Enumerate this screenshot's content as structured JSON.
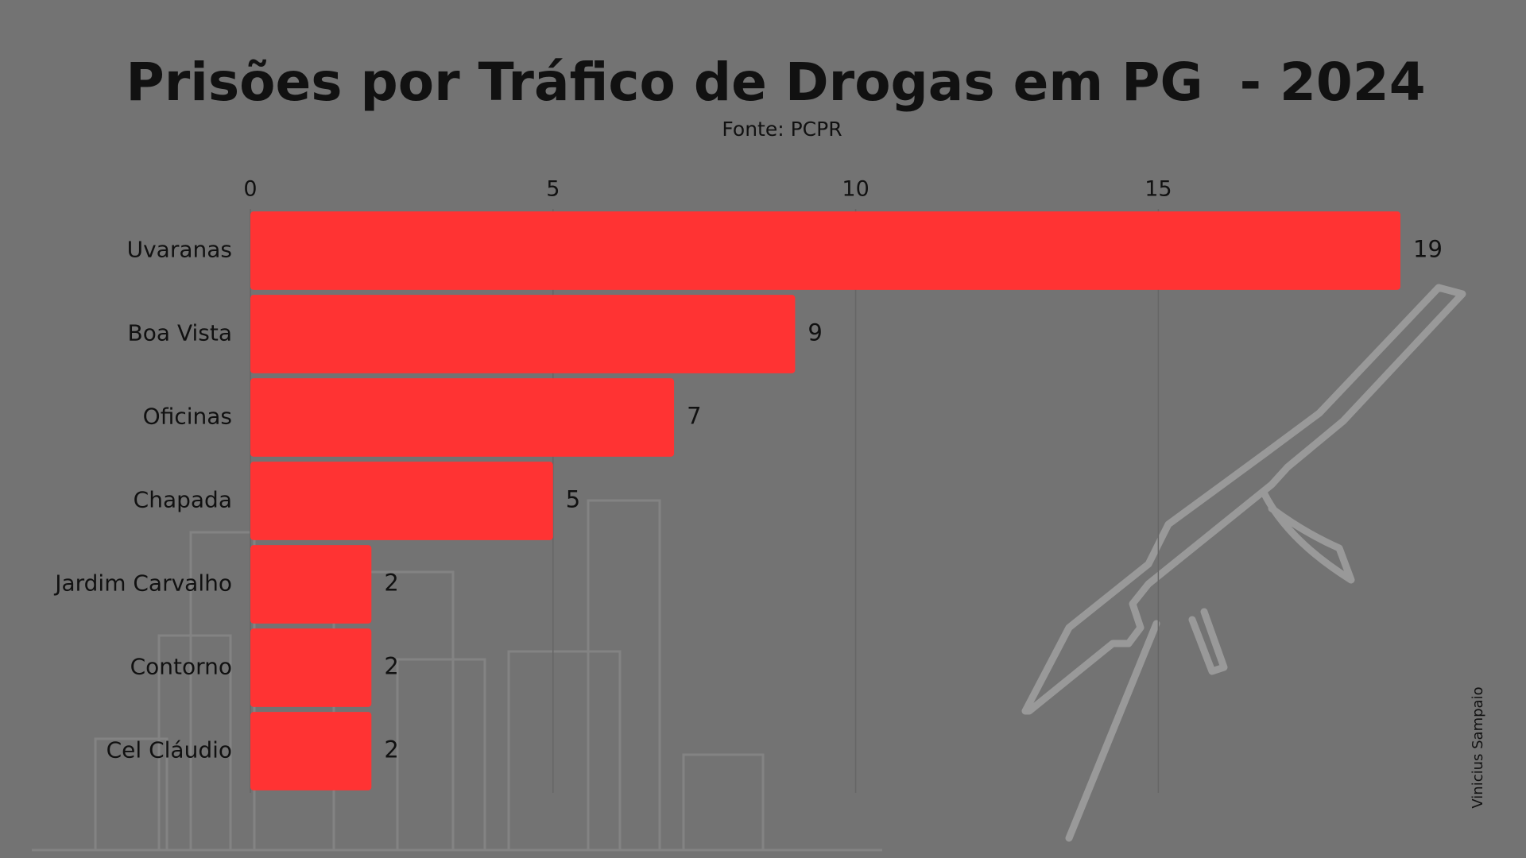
{
  "chart_data": {
    "type": "bar",
    "orientation": "horizontal",
    "title": "Prisões por Tráfico de Drogas em PG  - 2024",
    "subtitle": "Fonte: PCPR",
    "categories": [
      "Uvaranas",
      "Boa Vista",
      "Oficinas",
      "Chapada",
      "Jardim Carvalho",
      "Contorno",
      "Cel Cláudio"
    ],
    "values": [
      19,
      9,
      7,
      5,
      2,
      2,
      2
    ],
    "color": "#ff3333",
    "xlim": [
      0,
      19
    ],
    "xticks": [
      0,
      5,
      10,
      15
    ],
    "grid": true
  },
  "credit": "Vinicius Sampaio"
}
